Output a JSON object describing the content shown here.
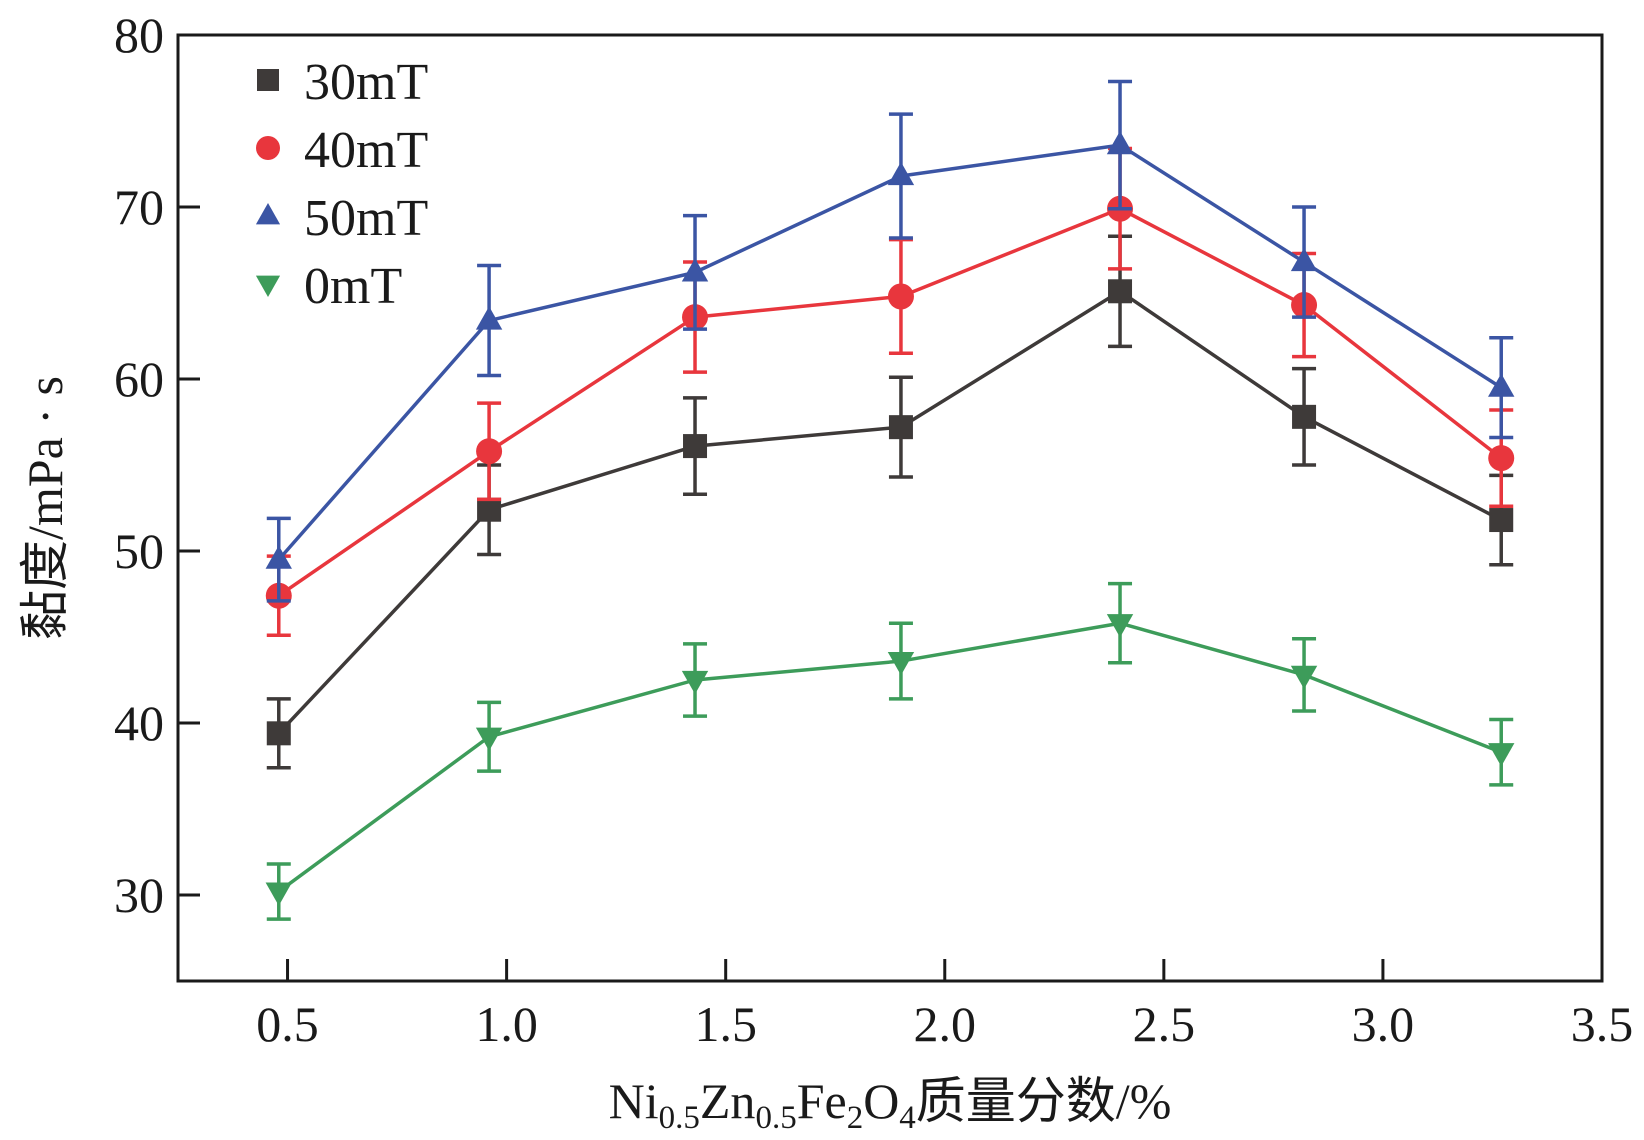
{
  "chart_data": {
    "type": "line",
    "title": "",
    "xlabel": {
      "prefix": "Ni",
      "sub1": "0.5",
      "mid1": "Zn",
      "sub2": "0.5",
      "mid2": "Fe",
      "sub3": "2",
      "mid3": "O",
      "sub4": "4",
      "suffix": "质量分数/%"
    },
    "ylabel": "黏度/mPa · s",
    "xlim": [
      0.25,
      3.5
    ],
    "ylim": [
      25,
      80
    ],
    "xticks": [
      "0.5",
      "1.0",
      "1.5",
      "2.0",
      "2.5",
      "3.0",
      "3.5"
    ],
    "yticks": [
      "30",
      "40",
      "50",
      "60",
      "70",
      "80"
    ],
    "legend_position": "top-left",
    "series": [
      {
        "name": "30mT",
        "marker": "square",
        "color": "#3e3a39",
        "x": [
          0.48,
          0.96,
          1.43,
          1.9,
          2.4,
          2.82,
          3.27
        ],
        "y": [
          39.4,
          52.4,
          56.1,
          57.2,
          65.1,
          57.8,
          51.8
        ],
        "err": [
          2.0,
          2.6,
          2.8,
          2.9,
          3.2,
          2.8,
          2.6
        ]
      },
      {
        "name": "40mT",
        "marker": "circle",
        "color": "#e8363d",
        "x": [
          0.48,
          0.96,
          1.43,
          1.9,
          2.4,
          2.82,
          3.27
        ],
        "y": [
          47.4,
          55.8,
          63.6,
          64.8,
          69.9,
          64.3,
          55.4
        ],
        "err": [
          2.3,
          2.8,
          3.2,
          3.3,
          3.5,
          3.0,
          2.8
        ]
      },
      {
        "name": "50mT",
        "marker": "triangle-up",
        "color": "#3b55a4",
        "x": [
          0.48,
          0.96,
          1.43,
          1.9,
          2.4,
          2.82,
          3.27
        ],
        "y": [
          49.5,
          63.4,
          66.2,
          71.8,
          73.6,
          66.8,
          59.5
        ],
        "err": [
          2.4,
          3.2,
          3.3,
          3.6,
          3.7,
          3.2,
          2.9
        ]
      },
      {
        "name": "0mT",
        "marker": "triangle-down",
        "color": "#3d9c5a",
        "x": [
          0.48,
          0.96,
          1.43,
          1.9,
          2.4,
          2.82,
          3.27
        ],
        "y": [
          30.2,
          39.2,
          42.5,
          43.6,
          45.8,
          42.8,
          38.3
        ],
        "err": [
          1.6,
          2.0,
          2.1,
          2.2,
          2.3,
          2.1,
          1.9
        ]
      }
    ]
  }
}
